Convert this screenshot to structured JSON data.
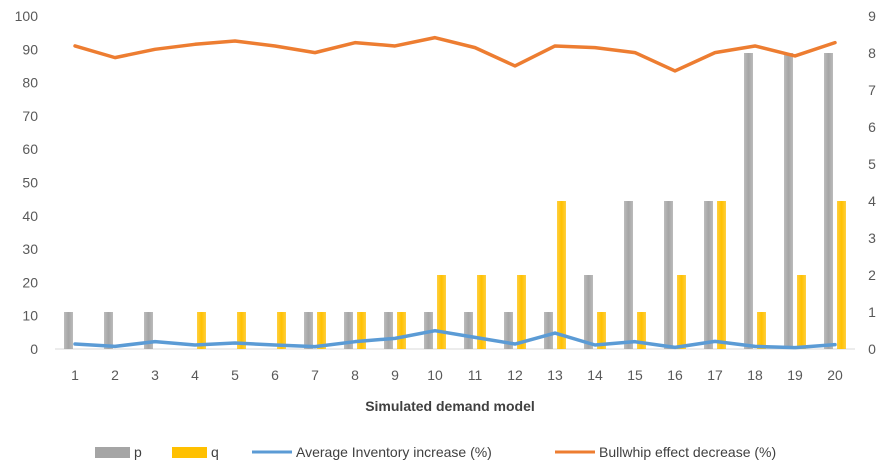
{
  "chart_data": {
    "type": "bar",
    "xlabel": "Simulated demand model",
    "ylabel": "",
    "categories": [
      "1",
      "2",
      "3",
      "4",
      "5",
      "6",
      "7",
      "8",
      "9",
      "10",
      "11",
      "12",
      "13",
      "14",
      "15",
      "16",
      "17",
      "18",
      "19",
      "20"
    ],
    "y_left": {
      "min": 0,
      "max": 100,
      "step": 10
    },
    "y_right": {
      "min": 0,
      "max": 9,
      "step": 1
    },
    "grid": false,
    "legend_position": "bottom",
    "series": [
      {
        "name": "p",
        "kind": "bar",
        "axis": "right",
        "color": "#a5a5a5",
        "values": [
          1,
          1,
          1,
          0,
          0,
          0,
          1,
          1,
          1,
          1,
          1,
          1,
          1,
          2,
          4,
          4,
          4,
          8,
          8,
          8
        ]
      },
      {
        "name": "q",
        "kind": "bar",
        "axis": "right",
        "color": "#ffc000",
        "values": [
          0,
          0,
          0,
          1,
          1,
          1,
          1,
          1,
          1,
          2,
          2,
          2,
          4,
          1,
          1,
          2,
          4,
          1,
          2,
          4
        ]
      },
      {
        "name": "Average Inventory increase (%)",
        "kind": "line",
        "axis": "left",
        "color": "#5b9bd5",
        "values": [
          1.5,
          0.8,
          2.2,
          1.2,
          1.8,
          1.2,
          0.7,
          2.2,
          3.2,
          5.5,
          3.5,
          1.5,
          4.8,
          1.2,
          2.2,
          0.5,
          2.3,
          0.8,
          0.4,
          1.3
        ]
      },
      {
        "name": "Bullwhip effect decrease (%)",
        "kind": "line",
        "axis": "left",
        "color": "#ed7d31",
        "values": [
          91,
          87.5,
          90,
          91.5,
          92.5,
          91,
          89,
          92,
          91,
          93.5,
          90.5,
          85,
          91,
          90.5,
          89,
          83.5,
          89,
          91,
          88,
          92
        ]
      }
    ]
  }
}
